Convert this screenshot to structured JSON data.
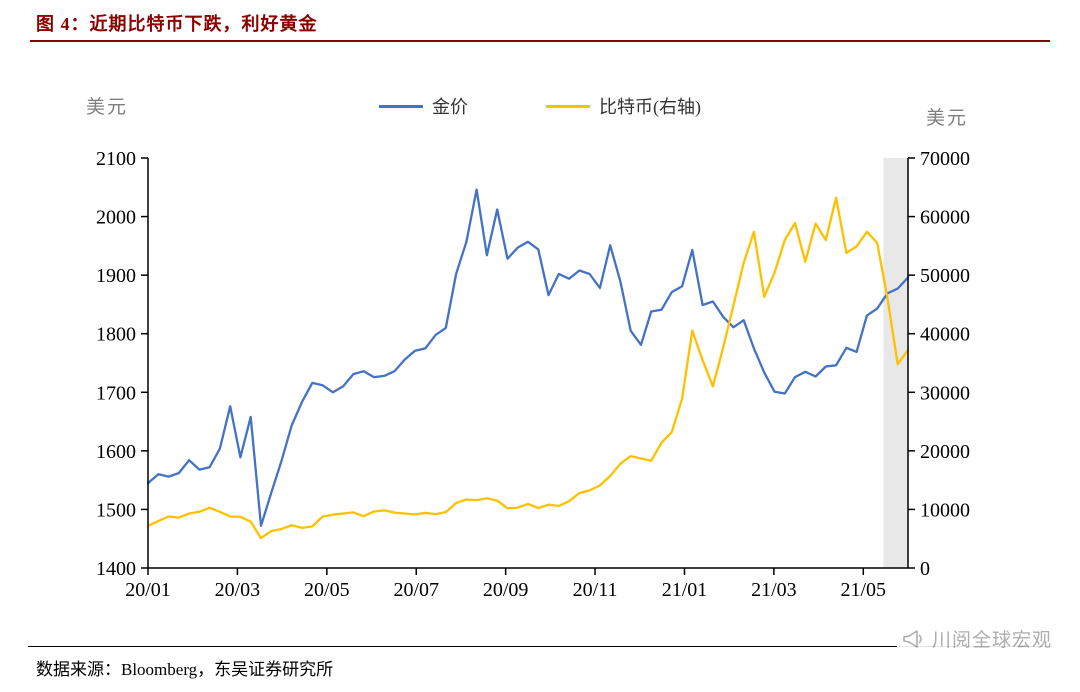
{
  "figure": {
    "title": "图 4：近期比特币下跌，利好黄金",
    "source_note": "数据来源：Bloomberg，东吴证券研究所",
    "watermark": "川阅全球宏观"
  },
  "colors": {
    "title": "#8B0000",
    "gold_line": "#4472C4",
    "btc_line": "#FFC000",
    "highlight_band": "#E8E8E8",
    "axis": "#000000",
    "axis_unit_text": "#808080",
    "watermark": "#A6A6A6"
  },
  "chart_data": {
    "type": "line",
    "title": "图 4：近期比特币下跌，利好黄金",
    "grid": false,
    "legend_position": "top-center",
    "x_unit": "months since 2020-01",
    "x_domain": [
      0,
      17
    ],
    "x_ticks": [
      {
        "pos": 0,
        "label": "20/01"
      },
      {
        "pos": 2,
        "label": "20/03"
      },
      {
        "pos": 4,
        "label": "20/05"
      },
      {
        "pos": 6,
        "label": "20/07"
      },
      {
        "pos": 8,
        "label": "20/09"
      },
      {
        "pos": 10,
        "label": "20/11"
      },
      {
        "pos": 12,
        "label": "21/01"
      },
      {
        "pos": 14,
        "label": "21/03"
      },
      {
        "pos": 16,
        "label": "21/05"
      }
    ],
    "left_axis": {
      "label": "美元",
      "min": 1400,
      "max": 2100,
      "step": 100
    },
    "right_axis": {
      "label": "美元",
      "min": 0,
      "max": 70000,
      "step": 10000
    },
    "highlight_band": {
      "x_from": 16.45,
      "x_to": 17,
      "color": "#E8E8E8"
    },
    "series": [
      {
        "name": "金价",
        "axis": "left",
        "color": "#4472C4",
        "values": [
          1545,
          1560,
          1556,
          1562,
          1584,
          1568,
          1572,
          1604,
          1676,
          1589,
          1658,
          1472,
          1528,
          1583,
          1644,
          1684,
          1716,
          1712,
          1700,
          1710,
          1731,
          1736,
          1726,
          1728,
          1736,
          1756,
          1771,
          1775,
          1798,
          1810,
          1902,
          1957,
          2046,
          1934,
          2012,
          1928,
          1947,
          1957,
          1944,
          1866,
          1902,
          1894,
          1908,
          1902,
          1878,
          1951,
          1889,
          1805,
          1781,
          1838,
          1841,
          1871,
          1881,
          1943,
          1849,
          1855,
          1829,
          1811,
          1823,
          1775,
          1734,
          1701,
          1698,
          1726,
          1735,
          1727,
          1744,
          1746,
          1776,
          1769,
          1831,
          1843,
          1869,
          1877,
          1896
        ]
      },
      {
        "name": "比特币(右轴)",
        "axis": "right",
        "color": "#FFC000",
        "values": [
          7200,
          8000,
          8800,
          8600,
          9300,
          9600,
          10300,
          9600,
          8800,
          8750,
          7900,
          5100,
          6300,
          6650,
          7300,
          6850,
          7100,
          8800,
          9100,
          9300,
          9500,
          8850,
          9650,
          9850,
          9450,
          9300,
          9150,
          9400,
          9200,
          9550,
          11100,
          11700,
          11600,
          11900,
          11500,
          10200,
          10300,
          10950,
          10250,
          10800,
          10600,
          11400,
          12800,
          13250,
          14100,
          15700,
          17800,
          19100,
          18700,
          18300,
          21400,
          23200,
          28900,
          40500,
          35500,
          31000,
          37600,
          44800,
          52100,
          57400,
          46300,
          50400,
          56000,
          58900,
          52300,
          58800,
          56000,
          63200,
          53800,
          54900,
          57400,
          55500,
          46000,
          34800,
          37200
        ]
      }
    ]
  }
}
